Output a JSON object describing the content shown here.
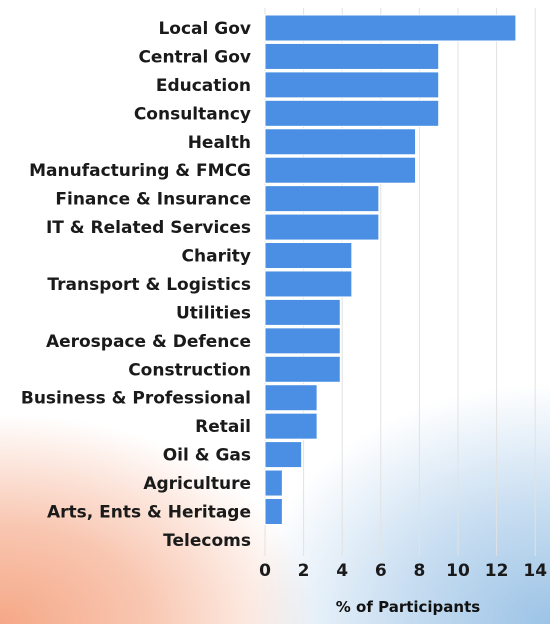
{
  "chart_data": {
    "type": "bar",
    "orientation": "horizontal",
    "categories": [
      "Local Gov",
      "Central Gov",
      "Education",
      "Consultancy",
      "Health",
      "Manufacturing & FMCG",
      "Finance & Insurance",
      "IT & Related Services",
      "Charity",
      "Transport & Logistics",
      "Utilities",
      "Aerospace & Defence",
      "Construction",
      "Business & Professional",
      "Retail",
      "Oil & Gas",
      "Agriculture",
      "Arts, Ents & Heritage",
      "Telecoms"
    ],
    "values": [
      13,
      9,
      9,
      9,
      7.8,
      7.8,
      5.9,
      5.9,
      4.5,
      4.5,
      3.9,
      3.9,
      3.9,
      2.7,
      2.7,
      1.9,
      0.9,
      0.9,
      0
    ],
    "xlabel": "% of Participants",
    "xlim": [
      0,
      14
    ],
    "xticks": [
      0,
      2,
      4,
      6,
      8,
      10,
      12,
      14
    ],
    "grid": true,
    "bar_color": "#4a8fe3"
  }
}
